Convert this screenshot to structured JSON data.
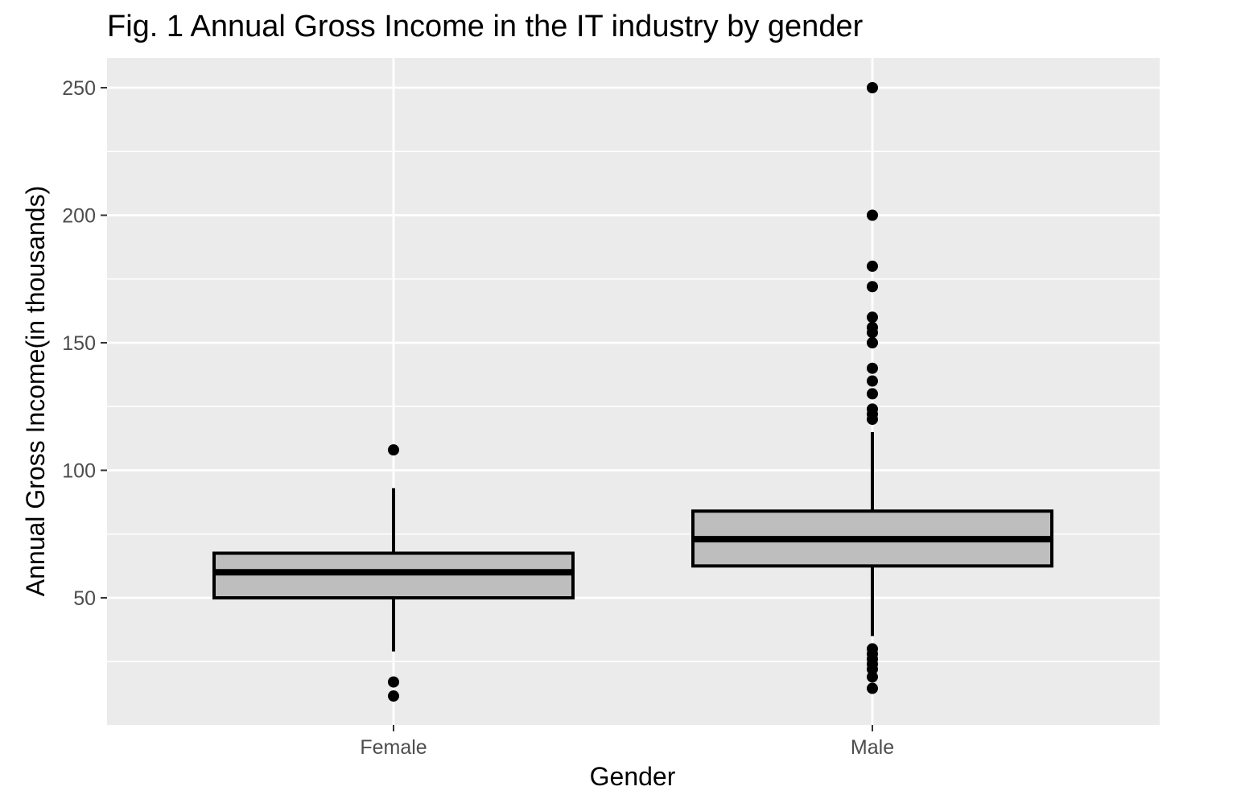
{
  "chart_data": {
    "type": "box",
    "title": "Fig. 1 Annual Gross Income in the IT industry by gender",
    "xlabel": "Gender",
    "ylabel": "Annual Gross Income(in thousands)",
    "categories": [
      "Female",
      "Male"
    ],
    "ylim": [
      0,
      262
    ],
    "yticks": [
      50,
      100,
      150,
      200,
      250
    ],
    "grid": true,
    "boxes": [
      {
        "category": "Female",
        "lower_whisker": 29,
        "q1": 50,
        "median": 60,
        "q3": 67.5,
        "upper_whisker": 93,
        "outliers": [
          108,
          17,
          11.5
        ]
      },
      {
        "category": "Male",
        "lower_whisker": 35,
        "q1": 62.5,
        "median": 73,
        "q3": 84,
        "upper_whisker": 115,
        "outliers": [
          250,
          200,
          180,
          172,
          160,
          156,
          154,
          150,
          140,
          135,
          130,
          124,
          122,
          120,
          30,
          28,
          26,
          24,
          22,
          19,
          14.5
        ]
      }
    ]
  },
  "colors": {
    "panel_bg": "#ebebeb",
    "grid": "#ffffff",
    "box_fill": "#bebebe",
    "box_stroke": "#000000",
    "point": "#000000",
    "tick_text": "#4d4d4d",
    "tick_mark": "#333333"
  }
}
